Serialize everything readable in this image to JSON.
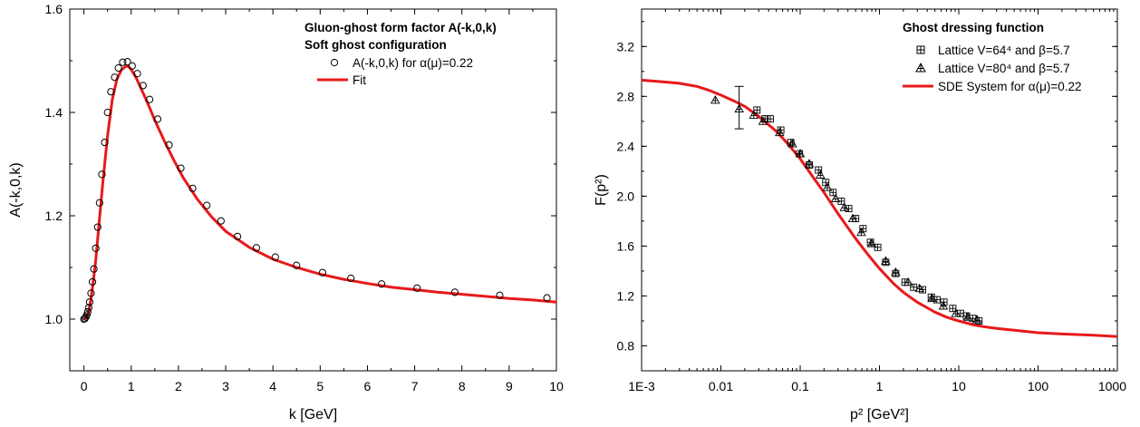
{
  "chart_data": [
    {
      "type": "scatter",
      "xlabel": "k [GeV]",
      "ylabel": "A(-k,0,k)",
      "xlim": [
        -0.3,
        10
      ],
      "ylim": [
        0.9,
        1.6
      ],
      "x_ticks": [
        "0",
        "1",
        "2",
        "3",
        "4",
        "5",
        "6",
        "7",
        "8",
        "9",
        "10"
      ],
      "y_ticks": [
        "1.0",
        "1.2",
        "1.4",
        "1.6"
      ],
      "grid": false,
      "legend_placement": "top-right",
      "legend": {
        "title_lines": [
          "Gluon-ghost form factor A(-k,0,k)",
          "Soft ghost configuration"
        ],
        "entries": [
          {
            "marker": "circle-open",
            "label": "A(-k,0,k) for α(μ)=0.22"
          },
          {
            "marker": "line",
            "label": "Fit"
          }
        ]
      },
      "colors": {
        "fit": "#e8191b",
        "points": "#000000"
      },
      "series": [
        {
          "name": "A(-k,0,k) for α(μ)=0.22",
          "kind": "points",
          "x": [
            0.0,
            0.02,
            0.04,
            0.06,
            0.08,
            0.1,
            0.12,
            0.15,
            0.18,
            0.21,
            0.25,
            0.29,
            0.33,
            0.38,
            0.44,
            0.5,
            0.57,
            0.65,
            0.73,
            0.82,
            0.92,
            1.02,
            1.13,
            1.25,
            1.39,
            1.56,
            1.8,
            2.05,
            2.3,
            2.6,
            2.9,
            3.25,
            3.65,
            4.05,
            4.5,
            5.05,
            5.65,
            6.3,
            7.05,
            7.85,
            8.8,
            9.8
          ],
          "y": [
            1.0,
            1.001,
            1.004,
            1.008,
            1.014,
            1.022,
            1.033,
            1.05,
            1.072,
            1.097,
            1.137,
            1.178,
            1.225,
            1.28,
            1.342,
            1.4,
            1.44,
            1.468,
            1.486,
            1.497,
            1.498,
            1.49,
            1.475,
            1.452,
            1.425,
            1.387,
            1.337,
            1.292,
            1.253,
            1.22,
            1.19,
            1.16,
            1.138,
            1.12,
            1.104,
            1.09,
            1.079,
            1.068,
            1.06,
            1.052,
            1.046,
            1.041
          ]
        },
        {
          "name": "Fit",
          "kind": "line",
          "x": [
            0.0,
            0.05,
            0.1,
            0.15,
            0.2,
            0.25,
            0.3,
            0.35,
            0.4,
            0.5,
            0.6,
            0.7,
            0.8,
            0.9,
            0.95,
            1.0,
            1.1,
            1.2,
            1.3,
            1.4,
            1.5,
            1.7,
            1.9,
            2.1,
            2.4,
            2.7,
            3.0,
            3.5,
            4.0,
            4.5,
            5.0,
            5.5,
            6.0,
            6.5,
            7.0,
            7.5,
            8.0,
            8.5,
            9.0,
            9.5,
            10.0
          ],
          "y": [
            1.0,
            1.003,
            1.015,
            1.04,
            1.075,
            1.115,
            1.165,
            1.215,
            1.265,
            1.355,
            1.425,
            1.465,
            1.483,
            1.49,
            1.488,
            1.483,
            1.468,
            1.448,
            1.428,
            1.407,
            1.385,
            1.345,
            1.308,
            1.274,
            1.232,
            1.198,
            1.17,
            1.139,
            1.116,
            1.1,
            1.087,
            1.077,
            1.069,
            1.062,
            1.057,
            1.052,
            1.048,
            1.044,
            1.04,
            1.037,
            1.033
          ]
        }
      ]
    },
    {
      "type": "scatter",
      "xlabel": "p² [GeV²]",
      "ylabel": "F(p²)",
      "x_scale": "log",
      "xlim": [
        0.001,
        1000
      ],
      "ylim": [
        0.6,
        3.5
      ],
      "x_ticks": [
        "1E-3",
        "0.01",
        "0.1",
        "1",
        "10",
        "100",
        "1000"
      ],
      "y_ticks": [
        "0.8",
        "1.2",
        "1.6",
        "2.0",
        "2.4",
        "2.8",
        "3.2"
      ],
      "grid": false,
      "legend_placement": "top-right",
      "legend": {
        "title_lines": [
          "Ghost dressing function"
        ],
        "entries": [
          {
            "marker": "square-plus",
            "label": "Lattice V=64⁴ and β=5.7"
          },
          {
            "marker": "triangle-plus",
            "label": "Lattice V=80⁴ and β=5.7"
          },
          {
            "marker": "line",
            "label": "SDE System for α(μ)=0.22"
          }
        ]
      },
      "colors": {
        "sde": "#e8191b",
        "points": "#000000"
      },
      "series": [
        {
          "name": "Lattice V=64⁴ and β=5.7",
          "kind": "points",
          "marker": "square-plus",
          "x": [
            0.0285,
            0.036,
            0.042,
            0.057,
            0.076,
            0.098,
            0.13,
            0.17,
            0.21,
            0.26,
            0.33,
            0.41,
            0.5,
            0.62,
            0.77,
            0.95,
            1.2,
            1.6,
            2.1,
            2.7,
            3.5,
            4.5,
            5.3,
            6.5,
            8.4,
            10.5,
            12.5,
            15.0,
            18.0
          ],
          "y": [
            2.69,
            2.62,
            2.62,
            2.53,
            2.43,
            2.34,
            2.25,
            2.21,
            2.11,
            2.03,
            1.96,
            1.9,
            1.82,
            1.74,
            1.63,
            1.59,
            1.47,
            1.38,
            1.31,
            1.27,
            1.25,
            1.19,
            1.17,
            1.15,
            1.1,
            1.06,
            1.04,
            1.02,
            1.0
          ]
        },
        {
          "name": "Lattice V=80⁴ and β=5.7",
          "kind": "points",
          "marker": "triangle-plus",
          "x": [
            0.0085,
            0.017,
            0.026,
            0.034,
            0.055,
            0.08,
            0.1,
            0.13,
            0.18,
            0.22,
            0.28,
            0.36,
            0.46,
            0.59,
            0.8,
            1.2,
            1.6,
            2.3,
            3.2,
            4.6,
            6.4,
            9.2,
            13.0,
            17.0
          ],
          "y": [
            2.77,
            2.7,
            2.65,
            2.6,
            2.51,
            2.42,
            2.34,
            2.26,
            2.17,
            2.07,
            1.98,
            1.91,
            1.82,
            1.71,
            1.62,
            1.48,
            1.39,
            1.31,
            1.26,
            1.18,
            1.12,
            1.06,
            1.03,
            1.01
          ]
        },
        {
          "name": "SDE System for α(μ)=0.22",
          "kind": "line",
          "x": [
            0.001,
            0.002,
            0.003,
            0.005,
            0.007,
            0.01,
            0.015,
            0.02,
            0.03,
            0.05,
            0.07,
            0.1,
            0.15,
            0.2,
            0.3,
            0.5,
            0.7,
            1.0,
            1.5,
            2.0,
            3.0,
            5.0,
            7.0,
            10.0,
            15.0,
            20.0,
            30.0,
            50.0,
            100.0,
            200.0,
            500.0,
            1000.0
          ],
          "y": [
            2.93,
            2.915,
            2.905,
            2.88,
            2.85,
            2.81,
            2.76,
            2.72,
            2.64,
            2.52,
            2.42,
            2.3,
            2.14,
            2.03,
            1.86,
            1.66,
            1.54,
            1.42,
            1.3,
            1.23,
            1.15,
            1.07,
            1.03,
            1.0,
            0.97,
            0.955,
            0.94,
            0.925,
            0.905,
            0.895,
            0.885,
            0.875
          ]
        }
      ],
      "error_bars": [
        {
          "x": 0.017,
          "y": 2.71,
          "low": 2.54,
          "high": 2.88
        }
      ]
    }
  ]
}
